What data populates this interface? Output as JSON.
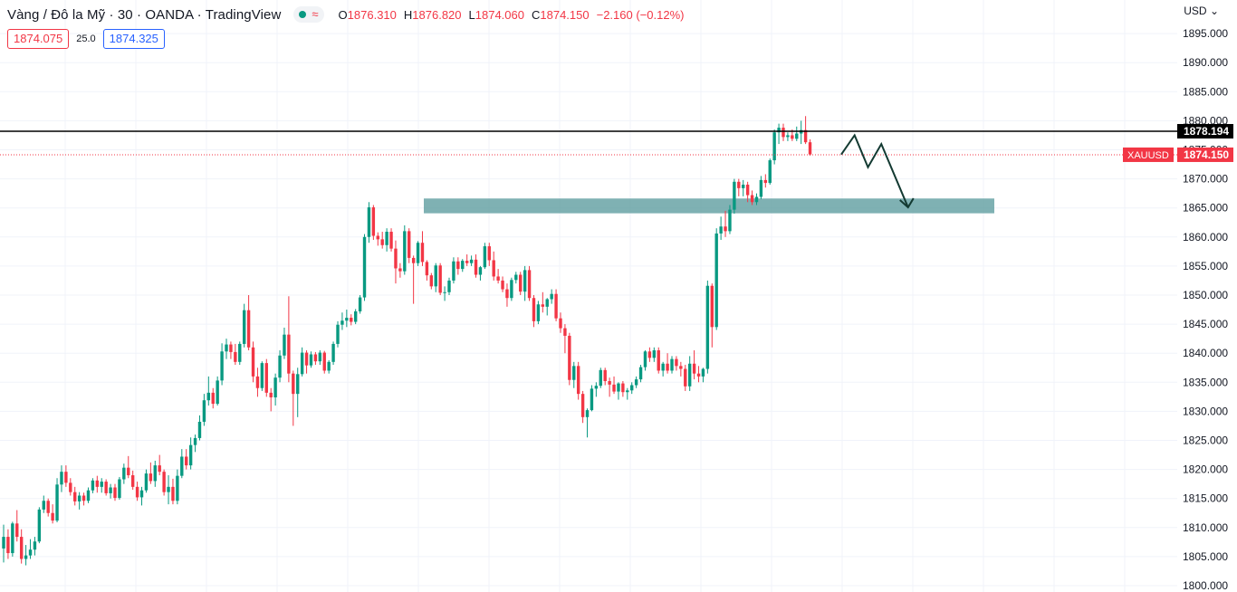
{
  "header": {
    "title": "Vàng / Đô la Mỹ · 30 · OANDA · TradingView",
    "ohlc": [
      {
        "key": "O",
        "value": "1876.310"
      },
      {
        "key": "H",
        "value": "1876.820"
      },
      {
        "key": "L",
        "value": "1874.060"
      },
      {
        "key": "C",
        "value": "1874.150"
      }
    ],
    "change": "−2.160 (−0.12%)",
    "status_color": "#089981"
  },
  "trade": {
    "sell": "1874.075",
    "spread": "25.0",
    "buy": "1874.325"
  },
  "price_axis": {
    "currency": "USD",
    "levels": [
      1800,
      1805,
      1810,
      1815,
      1820,
      1825,
      1830,
      1835,
      1840,
      1845,
      1850,
      1855,
      1860,
      1865,
      1870,
      1875,
      1880,
      1885,
      1890,
      1895
    ]
  },
  "colors": {
    "up": "#089981",
    "down": "#f23645",
    "grid": "#f0f3fa",
    "zone": "#5f9ea0",
    "label_bg": "#f23645"
  },
  "chart_data": {
    "type": "candlestick",
    "symbol": "XAUUSD",
    "timeframe": "30",
    "ylim": [
      1800,
      1897
    ],
    "grid": true,
    "last_price": {
      "label": "XAUUSD",
      "value": 1874.15,
      "text": "1874.150"
    },
    "horizontal_line": {
      "value": 1878.194,
      "text": "1878.194"
    },
    "zone": {
      "low": 1864.7,
      "high": 1866.0
    },
    "projection_path": [
      [
        188,
        1874.2
      ],
      [
        191,
        1877.5
      ],
      [
        194,
        1872.0
      ],
      [
        197,
        1876.0
      ],
      [
        203,
        1865.1
      ]
    ],
    "bars": [
      [
        1806.4,
        1810.5,
        1804.0,
        1808.4
      ],
      [
        1808.4,
        1809.7,
        1804.6,
        1805.6
      ],
      [
        1805.6,
        1811.0,
        1805.0,
        1810.7
      ],
      [
        1810.7,
        1813.0,
        1807.6,
        1808.4
      ],
      [
        1808.4,
        1809.7,
        1803.8,
        1804.6
      ],
      [
        1804.6,
        1807.0,
        1803.5,
        1805.2
      ],
      [
        1805.2,
        1808.0,
        1804.6,
        1806.2
      ],
      [
        1806.2,
        1808.4,
        1805.2,
        1807.6
      ],
      [
        1807.6,
        1813.5,
        1807.3,
        1813.1
      ],
      [
        1813.1,
        1815.5,
        1812.5,
        1814.6
      ],
      [
        1814.6,
        1815.0,
        1811.9,
        1812.5
      ],
      [
        1812.5,
        1814.0,
        1810.7,
        1811.2
      ],
      [
        1811.2,
        1818.5,
        1810.9,
        1817.4
      ],
      [
        1817.4,
        1820.7,
        1816.1,
        1819.6
      ],
      [
        1819.6,
        1820.7,
        1817.0,
        1817.7
      ],
      [
        1817.7,
        1818.5,
        1815.5,
        1816.1
      ],
      [
        1816.1,
        1817.0,
        1813.8,
        1814.5
      ],
      [
        1814.5,
        1816.1,
        1813.1,
        1815.5
      ],
      [
        1815.5,
        1816.0,
        1813.8,
        1814.6
      ],
      [
        1814.6,
        1816.9,
        1814.2,
        1816.4
      ],
      [
        1816.4,
        1818.5,
        1815.9,
        1818.1
      ],
      [
        1818.1,
        1818.9,
        1816.0,
        1817.0
      ],
      [
        1817.0,
        1818.5,
        1816.0,
        1817.9
      ],
      [
        1817.9,
        1818.3,
        1815.5,
        1815.9
      ],
      [
        1815.9,
        1817.5,
        1815.0,
        1816.9
      ],
      [
        1816.9,
        1817.5,
        1814.6,
        1815.1
      ],
      [
        1815.1,
        1818.7,
        1814.8,
        1818.3
      ],
      [
        1818.3,
        1821.0,
        1817.5,
        1820.3
      ],
      [
        1820.3,
        1822.3,
        1818.5,
        1819.0
      ],
      [
        1819.0,
        1819.8,
        1816.5,
        1817.0
      ],
      [
        1817.0,
        1817.9,
        1814.6,
        1815.2
      ],
      [
        1815.2,
        1817.0,
        1813.8,
        1816.4
      ],
      [
        1816.4,
        1820.0,
        1816.0,
        1819.3
      ],
      [
        1819.3,
        1821.2,
        1817.5,
        1818.0
      ],
      [
        1818.0,
        1821.5,
        1817.0,
        1820.7
      ],
      [
        1820.7,
        1822.5,
        1819.0,
        1819.6
      ],
      [
        1819.6,
        1820.0,
        1815.5,
        1816.1
      ],
      [
        1816.1,
        1819.0,
        1814.0,
        1817.0
      ],
      [
        1817.0,
        1818.4,
        1814.0,
        1814.6
      ],
      [
        1814.6,
        1820.0,
        1814.0,
        1818.9
      ],
      [
        1818.9,
        1823.5,
        1818.5,
        1822.2
      ],
      [
        1822.2,
        1823.5,
        1820.0,
        1820.7
      ],
      [
        1820.7,
        1825.5,
        1820.0,
        1824.2
      ],
      [
        1824.2,
        1826.0,
        1823.0,
        1825.4
      ],
      [
        1825.4,
        1829.3,
        1825.0,
        1828.2
      ],
      [
        1828.2,
        1833.0,
        1827.5,
        1831.9
      ],
      [
        1831.9,
        1836.0,
        1831.0,
        1833.2
      ],
      [
        1833.2,
        1834.0,
        1830.5,
        1831.3
      ],
      [
        1831.3,
        1836.0,
        1831.0,
        1835.3
      ],
      [
        1835.3,
        1841.7,
        1834.5,
        1840.3
      ],
      [
        1840.3,
        1842.5,
        1839.0,
        1841.5
      ],
      [
        1841.5,
        1842.0,
        1839.0,
        1840.2
      ],
      [
        1840.2,
        1841.6,
        1838.0,
        1838.5
      ],
      [
        1838.5,
        1842.0,
        1838.0,
        1841.6
      ],
      [
        1841.6,
        1848.5,
        1841.0,
        1847.4
      ],
      [
        1847.4,
        1850.0,
        1840.5,
        1841.0
      ],
      [
        1841.0,
        1842.0,
        1835.0,
        1836.0
      ],
      [
        1836.0,
        1837.5,
        1832.5,
        1834.0
      ],
      [
        1834.0,
        1838.6,
        1833.5,
        1838.3
      ],
      [
        1838.3,
        1839.0,
        1832.5,
        1833.2
      ],
      [
        1833.2,
        1834.0,
        1830.0,
        1832.4
      ],
      [
        1832.4,
        1836.5,
        1831.0,
        1835.8
      ],
      [
        1835.8,
        1840.5,
        1835.0,
        1839.6
      ],
      [
        1839.6,
        1844.4,
        1839.0,
        1843.2
      ],
      [
        1843.2,
        1849.8,
        1835.0,
        1836.5
      ],
      [
        1836.5,
        1837.0,
        1827.5,
        1833.0
      ],
      [
        1833.0,
        1837.5,
        1829.0,
        1836.4
      ],
      [
        1836.4,
        1841.0,
        1836.0,
        1840.1
      ],
      [
        1840.1,
        1840.5,
        1836.5,
        1837.9
      ],
      [
        1837.9,
        1840.3,
        1837.5,
        1839.8
      ],
      [
        1839.8,
        1840.2,
        1838.0,
        1838.6
      ],
      [
        1838.6,
        1840.5,
        1838.0,
        1840.1
      ],
      [
        1840.1,
        1840.4,
        1836.5,
        1837.0
      ],
      [
        1837.0,
        1838.8,
        1836.5,
        1838.5
      ],
      [
        1838.5,
        1842.0,
        1838.0,
        1841.6
      ],
      [
        1841.6,
        1845.5,
        1841.0,
        1844.9
      ],
      [
        1844.9,
        1847.0,
        1844.0,
        1845.6
      ],
      [
        1845.6,
        1847.5,
        1844.5,
        1846.1
      ],
      [
        1846.1,
        1846.7,
        1844.8,
        1845.4
      ],
      [
        1845.4,
        1847.6,
        1845.0,
        1847.2
      ],
      [
        1847.2,
        1850.0,
        1846.8,
        1849.6
      ],
      [
        1849.6,
        1860.5,
        1849.0,
        1860.0
      ],
      [
        1860.0,
        1866.0,
        1859.0,
        1865.1
      ],
      [
        1865.1,
        1865.5,
        1859.5,
        1860.2
      ],
      [
        1860.2,
        1860.8,
        1858.5,
        1859.6
      ],
      [
        1859.6,
        1860.9,
        1858.0,
        1858.6
      ],
      [
        1858.6,
        1861.5,
        1857.5,
        1860.9
      ],
      [
        1860.9,
        1861.5,
        1857.5,
        1858.0
      ],
      [
        1858.0,
        1859.4,
        1852.0,
        1854.6
      ],
      [
        1854.6,
        1855.5,
        1853.0,
        1854.1
      ],
      [
        1854.1,
        1862.0,
        1853.5,
        1861.0
      ],
      [
        1861.0,
        1861.5,
        1855.5,
        1856.4
      ],
      [
        1856.4,
        1856.8,
        1848.5,
        1855.5
      ],
      [
        1855.5,
        1859.3,
        1855.0,
        1859.0
      ],
      [
        1859.0,
        1861.0,
        1855.0,
        1855.7
      ],
      [
        1855.7,
        1856.0,
        1852.5,
        1853.4
      ],
      [
        1853.4,
        1853.8,
        1851.0,
        1851.5
      ],
      [
        1851.5,
        1855.5,
        1850.5,
        1855.1
      ],
      [
        1855.1,
        1855.5,
        1850.0,
        1850.4
      ],
      [
        1850.4,
        1851.5,
        1849.0,
        1850.5
      ],
      [
        1850.5,
        1853.0,
        1850.0,
        1852.5
      ],
      [
        1852.5,
        1856.5,
        1852.0,
        1855.8
      ],
      [
        1855.8,
        1856.5,
        1853.5,
        1854.5
      ],
      [
        1854.5,
        1856.2,
        1854.0,
        1855.9
      ],
      [
        1855.9,
        1857.0,
        1855.0,
        1855.5
      ],
      [
        1855.5,
        1856.8,
        1855.0,
        1856.1
      ],
      [
        1856.1,
        1857.0,
        1853.0,
        1853.5
      ],
      [
        1853.5,
        1855.0,
        1852.5,
        1854.8
      ],
      [
        1854.8,
        1859.0,
        1854.5,
        1858.4
      ],
      [
        1858.4,
        1859.0,
        1855.0,
        1856.0
      ],
      [
        1856.0,
        1857.5,
        1852.5,
        1853.2
      ],
      [
        1853.2,
        1854.5,
        1852.0,
        1852.5
      ],
      [
        1852.5,
        1853.2,
        1850.5,
        1851.0
      ],
      [
        1851.0,
        1852.0,
        1848.0,
        1849.5
      ],
      [
        1849.5,
        1853.0,
        1849.0,
        1852.6
      ],
      [
        1852.6,
        1854.0,
        1852.0,
        1853.5
      ],
      [
        1853.5,
        1854.0,
        1850.0,
        1850.6
      ],
      [
        1850.6,
        1855.0,
        1849.0,
        1854.3
      ],
      [
        1854.3,
        1855.0,
        1849.0,
        1849.5
      ],
      [
        1849.5,
        1850.0,
        1844.5,
        1845.5
      ],
      [
        1845.5,
        1849.0,
        1845.0,
        1848.4
      ],
      [
        1848.4,
        1850.5,
        1847.0,
        1848.0
      ],
      [
        1848.0,
        1849.5,
        1846.5,
        1849.3
      ],
      [
        1849.3,
        1851.0,
        1848.5,
        1850.2
      ],
      [
        1850.2,
        1851.0,
        1845.5,
        1846.0
      ],
      [
        1846.0,
        1847.0,
        1843.5,
        1844.3
      ],
      [
        1844.3,
        1845.0,
        1840.0,
        1843.0
      ],
      [
        1843.0,
        1843.5,
        1834.5,
        1835.4
      ],
      [
        1835.4,
        1838.5,
        1834.0,
        1837.8
      ],
      [
        1837.8,
        1838.5,
        1832.0,
        1833.0
      ],
      [
        1833.0,
        1833.5,
        1828.0,
        1829.0
      ],
      [
        1829.0,
        1830.5,
        1825.5,
        1830.2
      ],
      [
        1830.2,
        1834.5,
        1830.0,
        1833.9
      ],
      [
        1833.9,
        1835.0,
        1832.5,
        1834.4
      ],
      [
        1834.4,
        1837.5,
        1834.0,
        1837.1
      ],
      [
        1837.1,
        1837.5,
        1834.5,
        1835.2
      ],
      [
        1835.2,
        1835.8,
        1832.5,
        1834.6
      ],
      [
        1834.6,
        1836.0,
        1833.0,
        1833.4
      ],
      [
        1833.4,
        1835.0,
        1832.0,
        1834.8
      ],
      [
        1834.8,
        1835.2,
        1832.5,
        1833.3
      ],
      [
        1833.3,
        1834.0,
        1832.0,
        1833.6
      ],
      [
        1833.6,
        1835.0,
        1833.0,
        1834.5
      ],
      [
        1834.5,
        1836.0,
        1834.0,
        1835.5
      ],
      [
        1835.5,
        1838.0,
        1835.0,
        1837.6
      ],
      [
        1837.6,
        1840.5,
        1837.0,
        1840.3
      ],
      [
        1840.3,
        1841.0,
        1838.5,
        1839.2
      ],
      [
        1839.2,
        1841.0,
        1838.5,
        1840.5
      ],
      [
        1840.5,
        1841.0,
        1836.5,
        1837.0
      ],
      [
        1837.0,
        1838.5,
        1836.0,
        1838.2
      ],
      [
        1838.2,
        1840.0,
        1836.5,
        1837.0
      ],
      [
        1837.0,
        1839.5,
        1836.5,
        1839.0
      ],
      [
        1839.0,
        1839.5,
        1837.0,
        1837.8
      ],
      [
        1837.8,
        1838.5,
        1836.0,
        1837.3
      ],
      [
        1837.3,
        1838.0,
        1833.5,
        1834.3
      ],
      [
        1834.3,
        1839.5,
        1833.5,
        1838.2
      ],
      [
        1838.2,
        1840.5,
        1835.5,
        1836.5
      ],
      [
        1836.5,
        1837.8,
        1835.0,
        1836.0
      ],
      [
        1836.0,
        1837.5,
        1835.0,
        1837.3
      ],
      [
        1837.3,
        1852.5,
        1836.5,
        1851.6
      ],
      [
        1851.6,
        1852.0,
        1841.0,
        1844.5
      ],
      [
        1844.5,
        1861.5,
        1844.0,
        1860.6
      ],
      [
        1860.6,
        1863.5,
        1859.5,
        1861.8
      ],
      [
        1861.8,
        1864.5,
        1860.0,
        1861.0
      ],
      [
        1861.0,
        1865.5,
        1860.5,
        1864.7
      ],
      [
        1864.7,
        1870.0,
        1864.0,
        1869.5
      ],
      [
        1869.5,
        1870.0,
        1867.0,
        1868.4
      ],
      [
        1868.4,
        1869.8,
        1867.0,
        1869.0
      ],
      [
        1869.0,
        1869.5,
        1866.0,
        1867.2
      ],
      [
        1867.2,
        1868.0,
        1865.5,
        1866.0
      ],
      [
        1866.0,
        1867.5,
        1865.5,
        1866.9
      ],
      [
        1866.9,
        1870.5,
        1866.5,
        1869.8
      ],
      [
        1869.8,
        1870.8,
        1868.5,
        1869.3
      ],
      [
        1869.3,
        1873.5,
        1869.0,
        1873.2
      ],
      [
        1873.2,
        1878.5,
        1872.5,
        1878.0
      ],
      [
        1878.0,
        1879.5,
        1876.0,
        1878.8
      ],
      [
        1878.8,
        1879.5,
        1876.5,
        1877.2
      ],
      [
        1877.2,
        1878.0,
        1876.5,
        1877.5
      ],
      [
        1877.5,
        1878.5,
        1876.5,
        1876.9
      ],
      [
        1876.9,
        1879.0,
        1876.5,
        1877.8
      ],
      [
        1877.8,
        1880.0,
        1876.0,
        1878.4
      ],
      [
        1878.4,
        1880.8,
        1876.0,
        1876.3
      ],
      [
        1876.3,
        1876.8,
        1874.0,
        1874.2
      ]
    ]
  }
}
